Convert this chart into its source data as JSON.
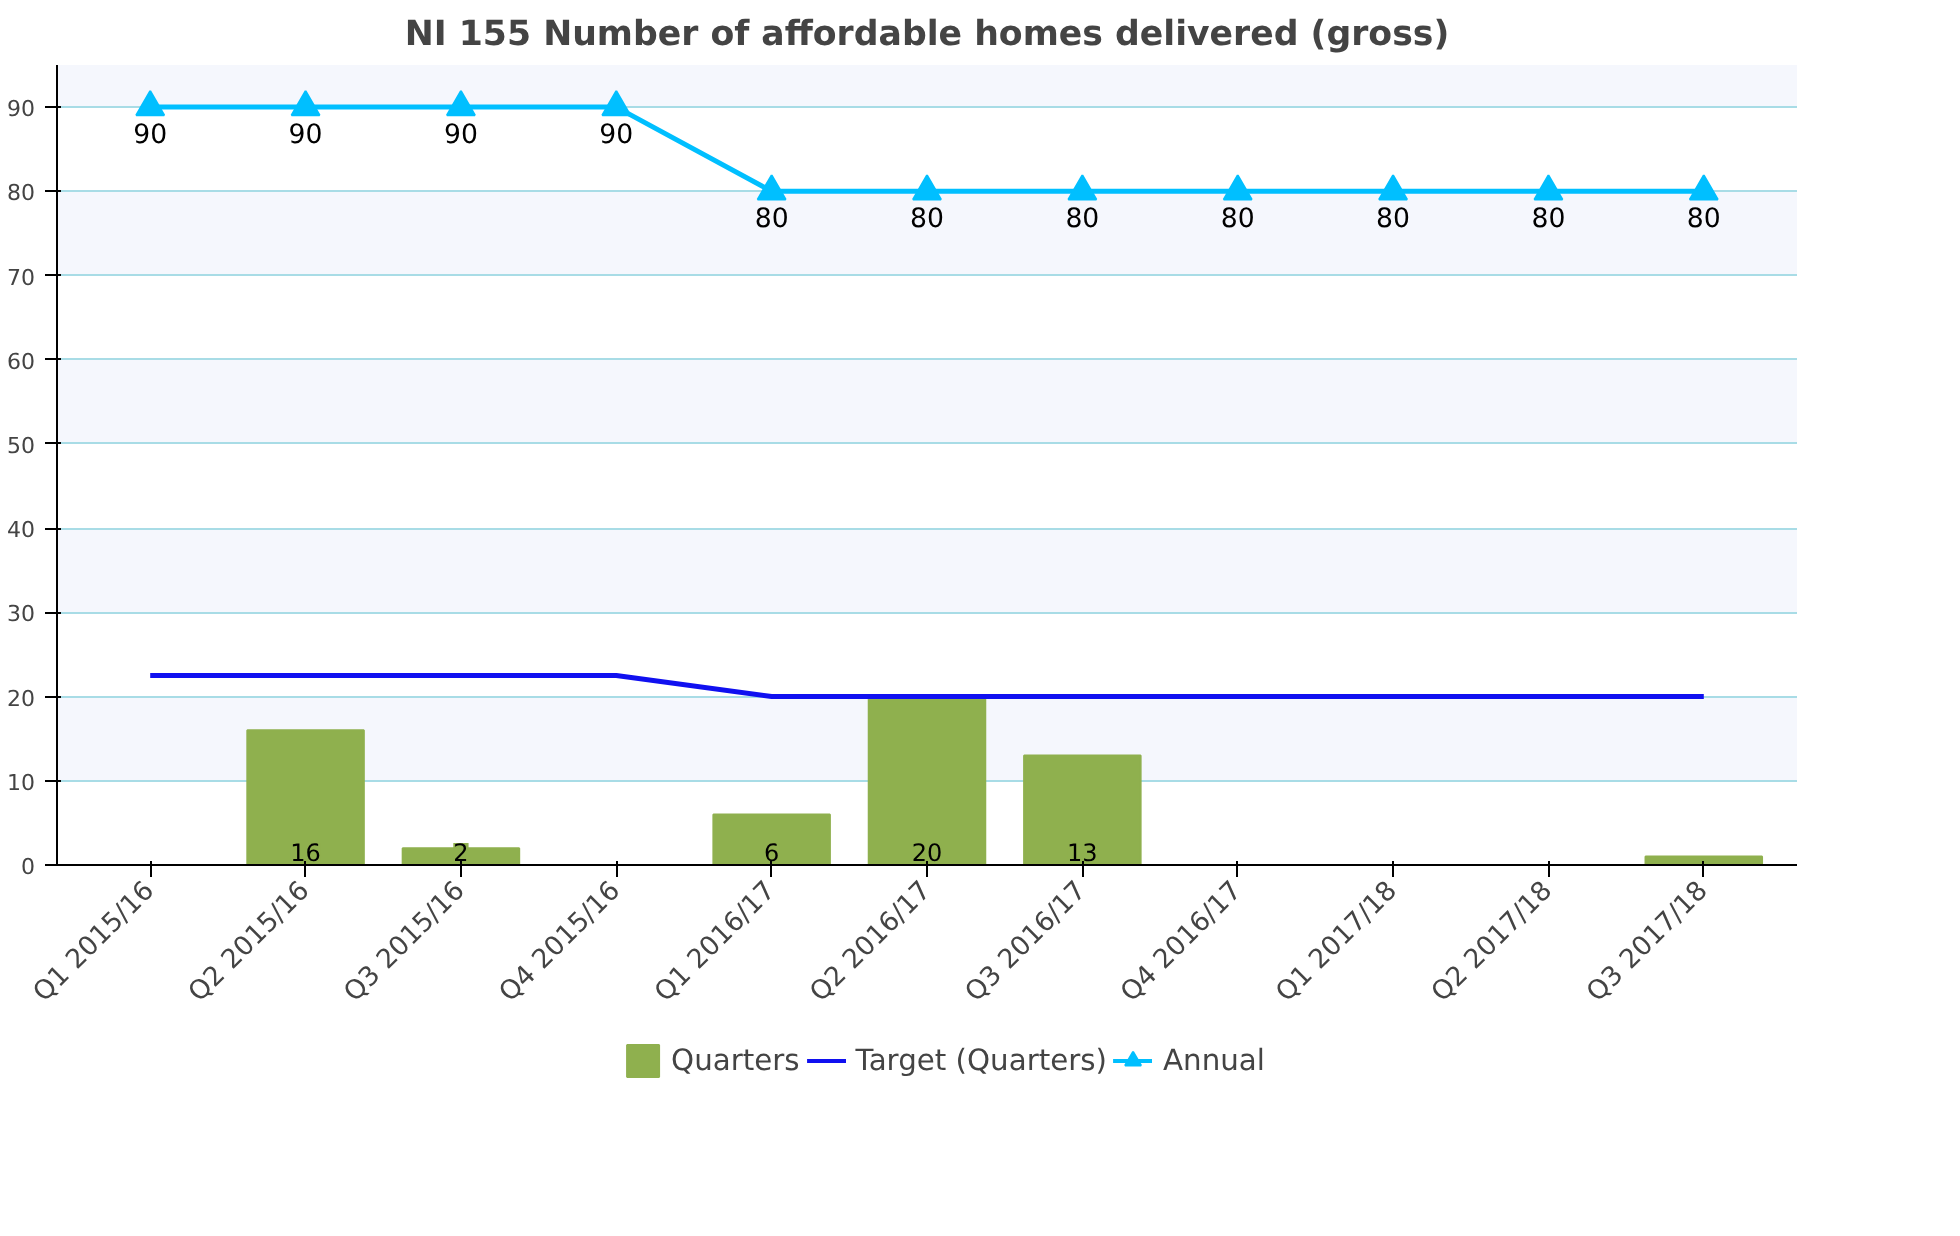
{
  "chart_data": {
    "type": "bar",
    "title": "NI 155 Number of affordable homes delivered (gross)",
    "categories": [
      "Q1 2015/16",
      "Q2 2015/16",
      "Q3 2015/16",
      "Q4 2015/16",
      "Q1 2016/17",
      "Q2 2016/17",
      "Q3 2016/17",
      "Q4 2016/17",
      "Q1 2017/18",
      "Q2 2017/18",
      "Q3 2017/18"
    ],
    "series": [
      {
        "name": "Quarters",
        "color": "#8fb04e",
        "values": [
          0,
          16,
          2,
          0,
          6,
          20,
          13,
          0,
          0,
          0,
          1
        ],
        "value_labels": [
          null,
          "16",
          "2",
          null,
          "6",
          "20",
          "13",
          null,
          null,
          null,
          null
        ]
      },
      {
        "name": "Target (Quarters)",
        "type": "line",
        "color": "#1010f0",
        "marker": "none",
        "values": [
          22.5,
          22.5,
          22.5,
          22.5,
          20,
          20,
          20,
          20,
          20,
          20,
          20
        ]
      },
      {
        "name": "Annual",
        "type": "line",
        "color": "#00bfff",
        "marker": "triangle",
        "values": [
          90,
          90,
          90,
          90,
          80,
          80,
          80,
          80,
          80,
          80,
          80
        ],
        "value_labels": [
          "90",
          "90",
          "90",
          "90",
          "80",
          "80",
          "80",
          "80",
          "80",
          "80",
          "80"
        ]
      }
    ],
    "ylim": [
      0,
      95
    ],
    "yticks": [
      0,
      10,
      20,
      30,
      40,
      50,
      60,
      70,
      80,
      90
    ],
    "grid": "y",
    "legend": "bottom"
  }
}
